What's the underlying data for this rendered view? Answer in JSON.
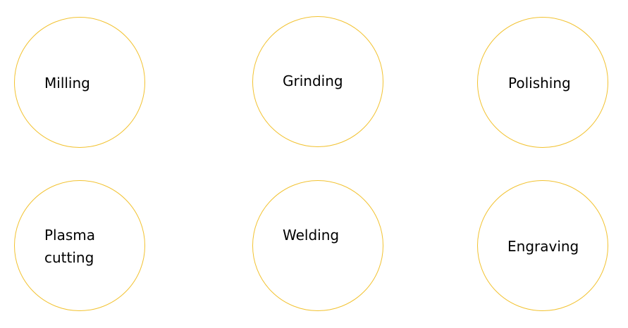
{
  "diagram": {
    "circle_color": "#f2c230",
    "items": [
      {
        "label": "Milling"
      },
      {
        "label": "Grinding"
      },
      {
        "label": "Polishing"
      },
      {
        "label_line1": "Plasma",
        "label_line2": "cutting"
      },
      {
        "label": "Welding"
      },
      {
        "label": "Engraving"
      }
    ]
  }
}
